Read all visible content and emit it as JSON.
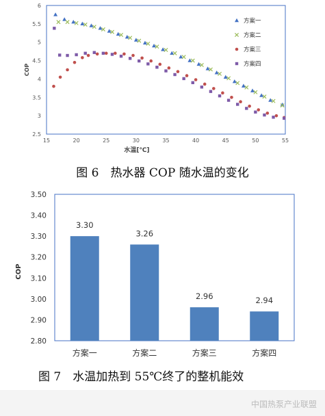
{
  "figures": {
    "fig6_caption": "图 6　热水器 COP 随水温的变化",
    "fig7_caption": "图 7　水温加热到 55℃终了的整机能效"
  },
  "watermark": "中国热泵产业联盟",
  "colors": {
    "series1": "#4472C4",
    "series2": "#9BBB59",
    "series3": "#C0504D",
    "series4": "#7E5BA8",
    "bar": "#4F81BD"
  },
  "chart_data": [
    {
      "type": "scatter",
      "title": "",
      "xlabel": "水温[℃]",
      "ylabel": "COP",
      "xlim": [
        15,
        55
      ],
      "ylim": [
        2.5,
        6
      ],
      "xticks": [
        15,
        20,
        25,
        30,
        35,
        40,
        45,
        50,
        55
      ],
      "yticks": [
        2.5,
        3,
        3.5,
        4,
        4.5,
        5,
        5.5,
        6
      ],
      "legend_position": "top-right",
      "series": [
        {
          "name": "方案一",
          "marker": "triangle",
          "points": [
            [
              16.5,
              5.75
            ],
            [
              18,
              5.62
            ],
            [
              19.5,
              5.55
            ],
            [
              21,
              5.5
            ],
            [
              22.5,
              5.45
            ],
            [
              24,
              5.38
            ],
            [
              25.5,
              5.3
            ],
            [
              27,
              5.22
            ],
            [
              28.5,
              5.14
            ],
            [
              30,
              5.06
            ],
            [
              31.5,
              4.98
            ],
            [
              33,
              4.9
            ],
            [
              34.5,
              4.8
            ],
            [
              36,
              4.7
            ],
            [
              37.5,
              4.6
            ],
            [
              39,
              4.5
            ],
            [
              40.5,
              4.4
            ],
            [
              42,
              4.28
            ],
            [
              43.5,
              4.17
            ],
            [
              45,
              4.05
            ],
            [
              46.5,
              3.93
            ],
            [
              48,
              3.81
            ],
            [
              49.5,
              3.68
            ],
            [
              51,
              3.55
            ],
            [
              52.5,
              3.42
            ],
            [
              54.5,
              3.3
            ]
          ]
        },
        {
          "name": "方案二",
          "marker": "x",
          "points": [
            [
              17,
              5.55
            ],
            [
              18.5,
              5.55
            ],
            [
              20,
              5.52
            ],
            [
              21.5,
              5.48
            ],
            [
              23,
              5.42
            ],
            [
              24.5,
              5.35
            ],
            [
              26,
              5.28
            ],
            [
              27.5,
              5.2
            ],
            [
              29,
              5.12
            ],
            [
              30.5,
              5.04
            ],
            [
              32,
              4.96
            ],
            [
              33.5,
              4.88
            ],
            [
              35,
              4.79
            ],
            [
              36.5,
              4.7
            ],
            [
              38,
              4.6
            ],
            [
              39.5,
              4.5
            ],
            [
              41,
              4.38
            ],
            [
              42.5,
              4.26
            ],
            [
              44,
              4.14
            ],
            [
              45.5,
              4.02
            ],
            [
              47,
              3.89
            ],
            [
              48.5,
              3.77
            ],
            [
              50,
              3.64
            ],
            [
              51.5,
              3.52
            ],
            [
              53,
              3.4
            ],
            [
              54.5,
              3.28
            ]
          ]
        },
        {
          "name": "方案三",
          "marker": "circle",
          "points": [
            [
              16.2,
              3.8
            ],
            [
              17.3,
              4.05
            ],
            [
              18.5,
              4.25
            ],
            [
              19.7,
              4.45
            ],
            [
              21,
              4.58
            ],
            [
              22,
              4.64
            ],
            [
              23.5,
              4.68
            ],
            [
              25,
              4.7
            ],
            [
              26.5,
              4.7
            ],
            [
              28,
              4.68
            ],
            [
              29.5,
              4.64
            ],
            [
              31,
              4.57
            ],
            [
              32.5,
              4.49
            ],
            [
              34,
              4.4
            ],
            [
              35.5,
              4.3
            ],
            [
              37,
              4.2
            ],
            [
              38.5,
              4.09
            ],
            [
              40,
              3.98
            ],
            [
              41.5,
              3.86
            ],
            [
              43,
              3.74
            ],
            [
              44.5,
              3.62
            ],
            [
              46,
              3.5
            ],
            [
              47.5,
              3.38
            ],
            [
              49,
              3.26
            ],
            [
              50.5,
              3.16
            ],
            [
              52,
              3.07
            ],
            [
              53.5,
              3.0
            ],
            [
              54.8,
              2.95
            ]
          ]
        },
        {
          "name": "方案四",
          "marker": "square",
          "points": [
            [
              16.3,
              5.38
            ],
            [
              17.2,
              4.65
            ],
            [
              18.5,
              4.64
            ],
            [
              20,
              4.66
            ],
            [
              21.5,
              4.7
            ],
            [
              23,
              4.72
            ],
            [
              24.5,
              4.7
            ],
            [
              26,
              4.67
            ],
            [
              27.5,
              4.62
            ],
            [
              29,
              4.56
            ],
            [
              30.5,
              4.49
            ],
            [
              32,
              4.41
            ],
            [
              33.5,
              4.32
            ],
            [
              35,
              4.22
            ],
            [
              36.5,
              4.12
            ],
            [
              38,
              4.01
            ],
            [
              39.5,
              3.9
            ],
            [
              41,
              3.78
            ],
            [
              42.5,
              3.66
            ],
            [
              44,
              3.54
            ],
            [
              45.5,
              3.42
            ],
            [
              47,
              3.31
            ],
            [
              48.5,
              3.2
            ],
            [
              50,
              3.1
            ],
            [
              51.5,
              3.02
            ],
            [
              53,
              2.96
            ],
            [
              54.8,
              2.93
            ]
          ]
        }
      ]
    },
    {
      "type": "bar",
      "title": "",
      "xlabel": "",
      "ylabel": "COP",
      "ylim": [
        2.8,
        3.5
      ],
      "yticks": [
        "2.80",
        "2.90",
        "3.00",
        "3.10",
        "3.20",
        "3.30",
        "3.40",
        "3.50"
      ],
      "categories": [
        "方案一",
        "方案二",
        "方案三",
        "方案四"
      ],
      "values": [
        3.3,
        3.26,
        2.96,
        2.94
      ],
      "data_labels": [
        "3.30",
        "3.26",
        "2.96",
        "2.94"
      ],
      "grid": false
    }
  ]
}
